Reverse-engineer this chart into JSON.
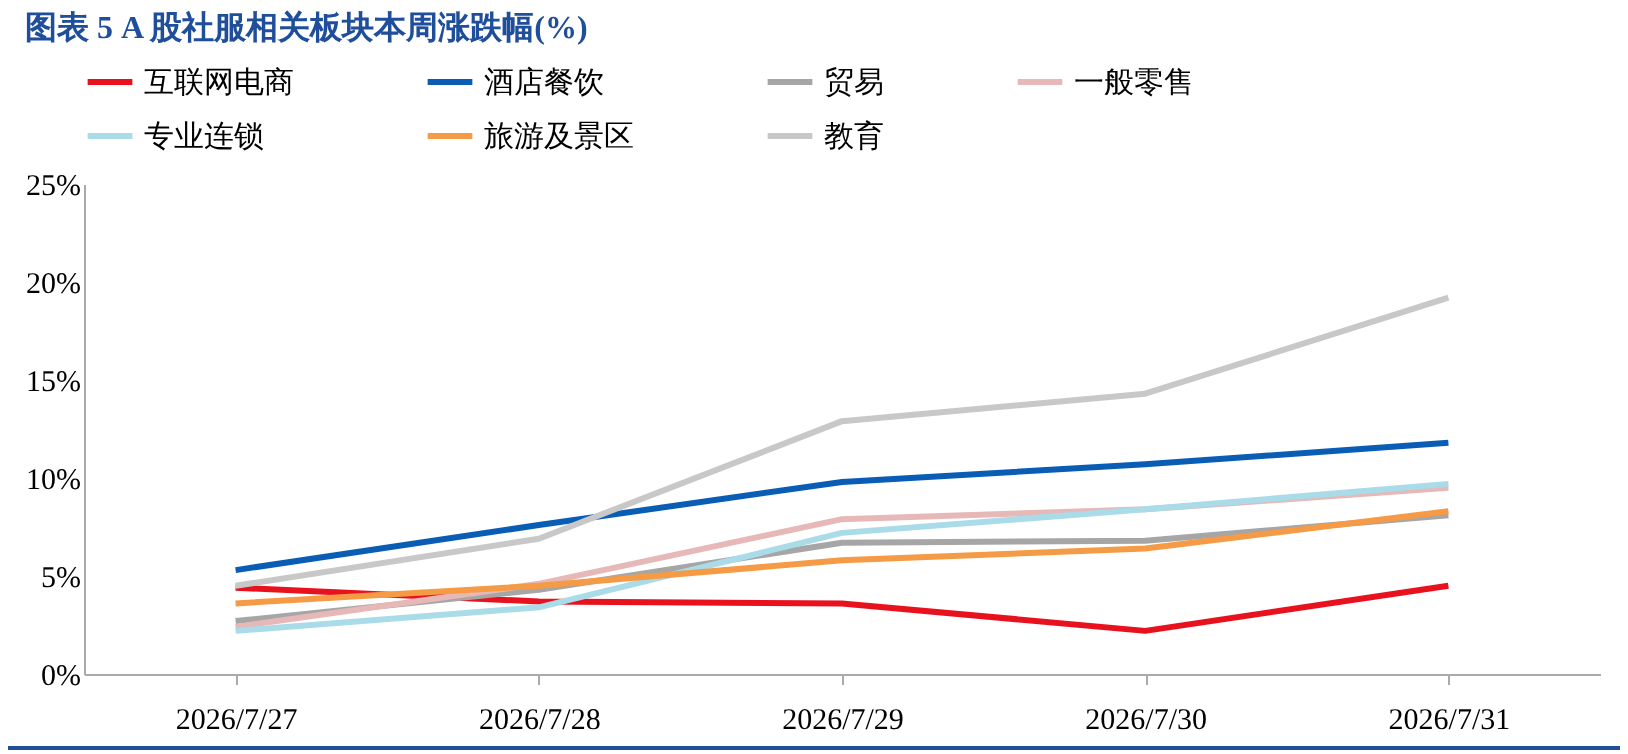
{
  "chart_data": {
    "type": "line",
    "title": "图表 5   A 股社服相关板块本周涨跌幅(%)",
    "categories": [
      "2026/7/27",
      "2026/7/28",
      "2026/7/29",
      "2026/7/30",
      "2026/7/31"
    ],
    "series": [
      {
        "name": "互联网电商",
        "color": "#e8121e",
        "values": [
          4.4,
          3.7,
          3.6,
          2.2,
          4.5
        ]
      },
      {
        "name": "酒店餐饮",
        "color": "#0a5db4",
        "values": [
          5.3,
          7.6,
          9.8,
          10.7,
          11.8
        ]
      },
      {
        "name": "贸易",
        "color": "#a6a6a6",
        "values": [
          2.7,
          4.3,
          6.7,
          6.8,
          8.1
        ]
      },
      {
        "name": "一般零售",
        "color": "#e6b8b7",
        "values": [
          2.4,
          4.6,
          7.9,
          8.4,
          9.5
        ]
      },
      {
        "name": "专业连锁",
        "color": "#a9dbe9",
        "values": [
          2.2,
          3.4,
          7.2,
          8.4,
          9.7
        ]
      },
      {
        "name": "旅游及景区",
        "color": "#f59a45",
        "values": [
          3.6,
          4.5,
          5.8,
          6.4,
          8.3
        ]
      },
      {
        "name": "教育",
        "color": "#c8c8c8",
        "values": [
          4.5,
          6.9,
          12.9,
          14.3,
          19.2
        ]
      }
    ],
    "ylim": [
      0,
      25
    ],
    "yticks": [
      {
        "value": 0,
        "label": "0%"
      },
      {
        "value": 5,
        "label": "5%"
      },
      {
        "value": 10,
        "label": "10%"
      },
      {
        "value": 15,
        "label": "15%"
      },
      {
        "value": 20,
        "label": "20%"
      },
      {
        "value": 25,
        "label": "25%"
      }
    ],
    "grid": false,
    "legend": "top",
    "marker": "none",
    "line_style": "solid"
  }
}
